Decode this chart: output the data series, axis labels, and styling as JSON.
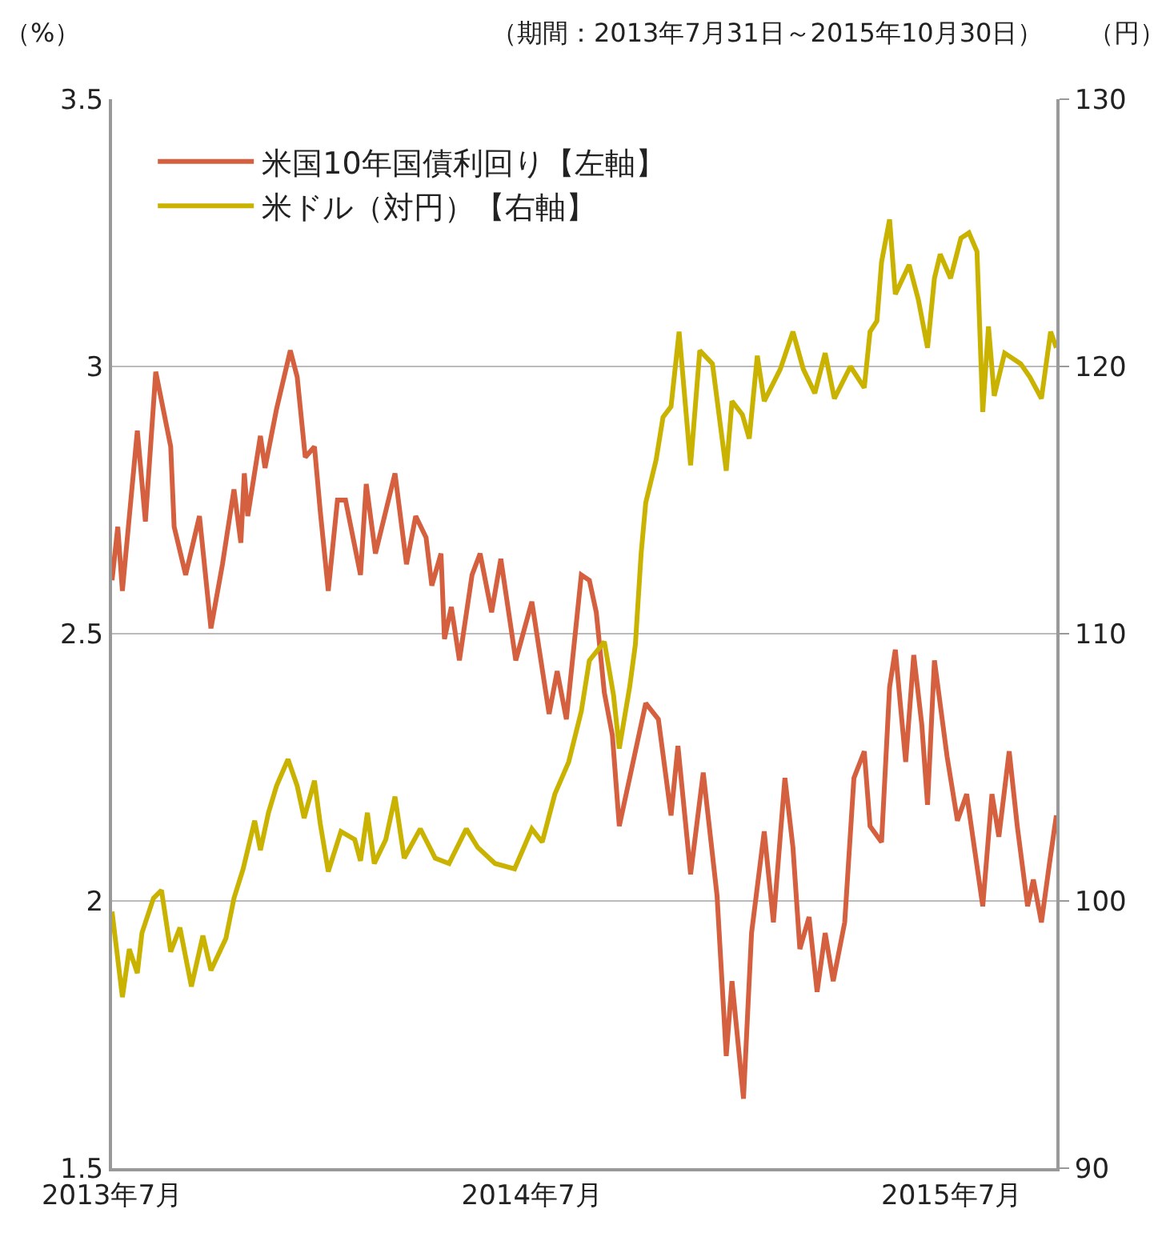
{
  "chart_data": {
    "type": "line",
    "subtitle": "（期間：2013年7月31日～2015年10月30日）",
    "ylabel": "（%）",
    "y2label": "（円）",
    "xlim": [
      "2013-07-31",
      "2015-10-30"
    ],
    "xticks": [
      {
        "value": "2013-07-31",
        "label": "2013年7月"
      },
      {
        "value": "2014-07-31",
        "label": "2014年7月"
      },
      {
        "value": "2015-07-31",
        "label": "2015年7月"
      }
    ],
    "ylim": [
      1.5,
      3.5
    ],
    "yticks": [
      1.5,
      2,
      2.5,
      3,
      3.5
    ],
    "y2lim": [
      90,
      130
    ],
    "y2ticks": [
      90,
      100,
      110,
      120,
      130
    ],
    "grid": "y",
    "legend": "top left",
    "marker": "none",
    "line_style": "solid",
    "series": [
      {
        "name": "米国10年国債利回り【左軸】",
        "color": "#d4603f",
        "x": [
          "2013-07-31",
          "2013-08-05",
          "2013-08-09",
          "2013-08-22",
          "2013-08-29",
          "2013-09-07",
          "2013-09-20",
          "2013-09-23",
          "2013-10-03",
          "2013-10-15",
          "2013-10-25",
          "2013-11-04",
          "2013-11-14",
          "2013-11-20",
          "2013-11-23",
          "2013-11-26",
          "2013-12-07",
          "2013-12-11",
          "2013-12-21",
          "2014-01-02",
          "2014-01-08",
          "2014-01-15",
          "2014-01-23",
          "2014-01-28",
          "2014-02-04",
          "2014-02-12",
          "2014-02-19",
          "2014-03-04",
          "2014-03-09",
          "2014-03-17",
          "2014-04-03",
          "2014-04-13",
          "2014-04-21",
          "2014-04-30",
          "2014-05-05",
          "2014-05-13",
          "2014-05-16",
          "2014-05-22",
          "2014-05-29",
          "2014-06-09",
          "2014-06-16",
          "2014-06-26",
          "2014-07-04",
          "2014-07-17",
          "2014-07-31",
          "2014-08-15",
          "2014-08-22",
          "2014-08-30",
          "2014-09-12",
          "2014-09-19",
          "2014-09-25",
          "2014-10-02",
          "2014-10-09",
          "2014-10-15",
          "2014-10-27",
          "2014-11-07",
          "2014-11-18",
          "2014-11-29",
          "2014-12-05",
          "2014-12-16",
          "2014-12-27",
          "2015-01-08",
          "2015-01-16",
          "2015-01-21",
          "2015-01-31",
          "2015-02-07",
          "2015-02-18",
          "2015-02-26",
          "2015-03-08",
          "2015-03-15",
          "2015-03-21",
          "2015-03-29",
          "2015-04-05",
          "2015-04-12",
          "2015-04-19",
          "2015-04-29",
          "2015-05-07",
          "2015-05-16",
          "2015-05-21",
          "2015-05-31",
          "2015-06-07",
          "2015-06-12",
          "2015-06-21",
          "2015-06-28",
          "2015-07-05",
          "2015-07-10",
          "2015-07-16",
          "2015-07-27",
          "2015-08-05",
          "2015-08-13",
          "2015-08-27",
          "2015-09-04",
          "2015-09-10",
          "2015-09-19",
          "2015-09-26",
          "2015-10-05",
          "2015-10-10",
          "2015-10-17",
          "2015-10-24",
          "2015-10-30"
        ],
        "values": [
          2.6,
          2.7,
          2.58,
          2.88,
          2.71,
          2.99,
          2.85,
          2.7,
          2.61,
          2.72,
          2.51,
          2.63,
          2.77,
          2.67,
          2.8,
          2.72,
          2.87,
          2.81,
          2.92,
          3.03,
          2.98,
          2.83,
          2.85,
          2.73,
          2.58,
          2.75,
          2.75,
          2.61,
          2.78,
          2.65,
          2.8,
          2.63,
          2.72,
          2.68,
          2.59,
          2.65,
          2.49,
          2.55,
          2.45,
          2.61,
          2.65,
          2.54,
          2.64,
          2.45,
          2.56,
          2.35,
          2.43,
          2.34,
          2.61,
          2.6,
          2.54,
          2.39,
          2.31,
          2.14,
          2.26,
          2.37,
          2.34,
          2.16,
          2.29,
          2.05,
          2.24,
          2.01,
          1.71,
          1.85,
          1.63,
          1.94,
          2.13,
          1.96,
          2.23,
          2.1,
          1.91,
          1.97,
          1.83,
          1.94,
          1.85,
          1.96,
          2.23,
          2.28,
          2.14,
          2.11,
          2.4,
          2.47,
          2.26,
          2.46,
          2.33,
          2.18,
          2.45,
          2.27,
          2.15,
          2.2,
          1.99,
          2.2,
          2.12,
          2.28,
          2.14,
          1.99,
          2.04,
          1.96,
          2.07,
          2.16
        ]
      },
      {
        "name": "米ドル（対円）【右軸】",
        "color": "#c9b300",
        "axis": "y2",
        "x": [
          "2013-07-31",
          "2013-08-09",
          "2013-08-15",
          "2013-08-22",
          "2013-08-26",
          "2013-09-05",
          "2013-09-12",
          "2013-09-20",
          "2013-09-28",
          "2013-10-08",
          "2013-10-18",
          "2013-10-25",
          "2013-11-07",
          "2013-11-14",
          "2013-11-22",
          "2013-12-02",
          "2013-12-07",
          "2013-12-14",
          "2013-12-21",
          "2013-12-31",
          "2014-01-08",
          "2014-01-14",
          "2014-01-23",
          "2014-01-28",
          "2014-02-04",
          "2014-02-15",
          "2014-02-27",
          "2014-03-04",
          "2014-03-10",
          "2014-03-16",
          "2014-03-26",
          "2014-04-03",
          "2014-04-11",
          "2014-04-25",
          "2014-05-08",
          "2014-05-20",
          "2014-06-04",
          "2014-06-14",
          "2014-06-29",
          "2014-07-16",
          "2014-07-31",
          "2014-08-09",
          "2014-08-20",
          "2014-09-01",
          "2014-09-12",
          "2014-09-19",
          "2014-10-02",
          "2014-10-10",
          "2014-10-15",
          "2014-10-24",
          "2014-10-29",
          "2014-11-03",
          "2014-11-07",
          "2014-11-16",
          "2014-11-22",
          "2014-11-29",
          "2014-12-06",
          "2014-12-16",
          "2014-12-24",
          "2015-01-04",
          "2015-01-16",
          "2015-01-21",
          "2015-01-30",
          "2015-02-05",
          "2015-02-12",
          "2015-02-18",
          "2015-03-04",
          "2015-03-15",
          "2015-03-24",
          "2015-04-03",
          "2015-04-12",
          "2015-04-20",
          "2015-05-04",
          "2015-05-16",
          "2015-05-21",
          "2015-05-27",
          "2015-05-31",
          "2015-06-07",
          "2015-06-12",
          "2015-06-24",
          "2015-07-02",
          "2015-07-10",
          "2015-07-16",
          "2015-07-21",
          "2015-07-30",
          "2015-08-08",
          "2015-08-15",
          "2015-08-22",
          "2015-08-27",
          "2015-09-01",
          "2015-09-06",
          "2015-09-15",
          "2015-09-29",
          "2015-10-07",
          "2015-10-17",
          "2015-10-25",
          "2015-10-30"
        ],
        "values": [
          99.6,
          96.4,
          98.2,
          97.3,
          98.8,
          100.1,
          100.4,
          98.1,
          99.0,
          96.8,
          98.7,
          97.4,
          98.6,
          100.1,
          101.2,
          103.0,
          101.9,
          103.3,
          104.3,
          105.3,
          104.3,
          103.1,
          104.5,
          102.9,
          101.1,
          102.6,
          102.3,
          101.5,
          103.3,
          101.4,
          102.3,
          103.9,
          101.6,
          102.7,
          101.6,
          101.4,
          102.7,
          102.0,
          101.4,
          101.2,
          102.7,
          102.2,
          104.0,
          105.2,
          107.1,
          109.0,
          109.7,
          107.7,
          105.7,
          108.0,
          109.6,
          113.0,
          114.9,
          116.5,
          118.1,
          118.5,
          121.3,
          116.3,
          120.6,
          120.1,
          116.1,
          118.7,
          118.2,
          117.3,
          120.4,
          118.7,
          119.9,
          121.3,
          119.9,
          119.0,
          120.5,
          118.8,
          120.0,
          119.2,
          121.3,
          121.7,
          123.9,
          125.5,
          122.7,
          123.8,
          122.5,
          120.7,
          123.3,
          124.2,
          123.3,
          124.8,
          125.0,
          124.3,
          118.3,
          121.5,
          118.9,
          120.5,
          120.1,
          119.6,
          118.8,
          121.3,
          120.7
        ]
      }
    ]
  }
}
